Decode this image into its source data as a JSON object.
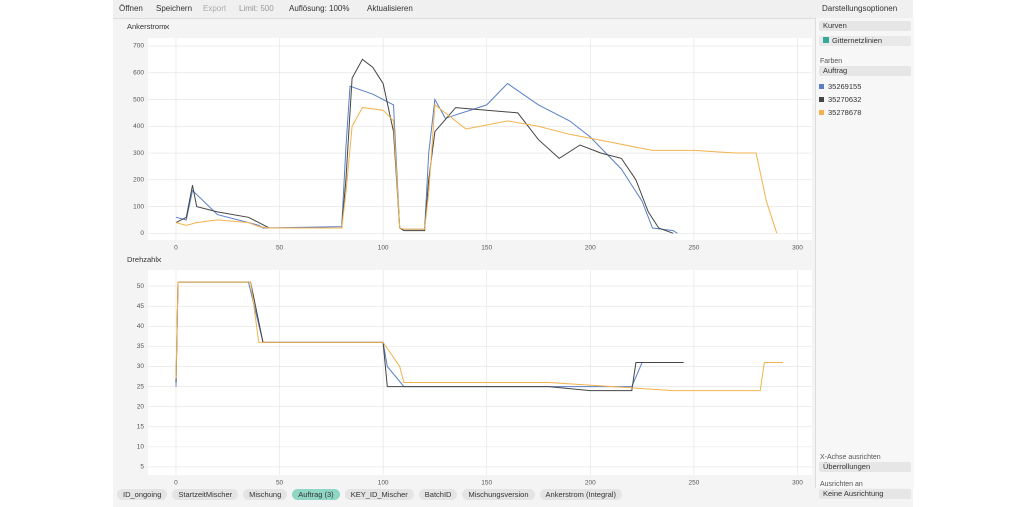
{
  "toolbar": {
    "open": "Öffnen",
    "save": "Speichern",
    "export": "Export",
    "limit": "Limit: 500",
    "resolution": "Auflösung: 100%",
    "refresh": "Aktualisieren",
    "options": "Darstellungsoptionen"
  },
  "panel": {
    "mode": "Kurven",
    "grid_option": "Gitternetzlinien",
    "colors_label": "Farben",
    "colors_by": "Auftrag",
    "align_x_label": "X-Achse ausrichten",
    "align_x": "Überrollungen",
    "align_to_label": "Ausrichten an",
    "align_to": "Keine Ausrichtung"
  },
  "chips": [
    "ID_ongoing",
    "StartzeitMischer",
    "Mischung",
    "Auftrag (3)",
    "KEY_ID_Mischer",
    "BatchID",
    "Mischungsversion",
    "Ankerstrom (Integral)"
  ],
  "chart_data": [
    {
      "type": "line",
      "title": "Ankerstrom",
      "xlim": [
        -13.5,
        307
      ],
      "ylim": [
        -25,
        730
      ],
      "xticks": [
        0,
        50,
        100,
        150,
        200,
        250,
        300
      ],
      "yticks": [
        0,
        100,
        200,
        300,
        400,
        500,
        600,
        700
      ],
      "grid": true,
      "series": [
        {
          "name": "35269155",
          "color": "#5b7fc4",
          "x": [
            0,
            5,
            8,
            20,
            35,
            40,
            42,
            80,
            82,
            84,
            95,
            100,
            105,
            108,
            110,
            120,
            122,
            125,
            130,
            150,
            160,
            175,
            190,
            200,
            215,
            225,
            230,
            240,
            242
          ],
          "values": [
            60,
            50,
            160,
            70,
            40,
            30,
            20,
            25,
            320,
            550,
            520,
            500,
            480,
            20,
            15,
            15,
            300,
            500,
            430,
            480,
            560,
            480,
            420,
            360,
            240,
            120,
            20,
            10,
            0
          ]
        },
        {
          "name": "35270632",
          "color": "#454545",
          "x": [
            0,
            5,
            8,
            10,
            20,
            35,
            40,
            45,
            80,
            82,
            85,
            90,
            95,
            100,
            105,
            108,
            110,
            120,
            122,
            125,
            135,
            150,
            165,
            175,
            185,
            195,
            205,
            215,
            222,
            228,
            233,
            240
          ],
          "values": [
            40,
            60,
            180,
            100,
            80,
            60,
            40,
            20,
            20,
            200,
            580,
            650,
            620,
            560,
            380,
            20,
            10,
            10,
            200,
            380,
            470,
            460,
            450,
            350,
            280,
            330,
            300,
            280,
            200,
            80,
            20,
            0
          ]
        },
        {
          "name": "35278678",
          "color": "#f2b34d",
          "x": [
            0,
            5,
            10,
            20,
            35,
            40,
            45,
            80,
            82,
            85,
            90,
            100,
            105,
            108,
            110,
            120,
            122,
            125,
            140,
            160,
            175,
            190,
            210,
            230,
            250,
            270,
            280,
            285,
            290
          ],
          "values": [
            40,
            30,
            40,
            50,
            40,
            25,
            20,
            20,
            150,
            400,
            470,
            460,
            420,
            20,
            15,
            15,
            150,
            480,
            390,
            420,
            400,
            370,
            340,
            310,
            310,
            300,
            300,
            120,
            0
          ]
        }
      ]
    },
    {
      "type": "line",
      "title": "Drehzahl",
      "xlim": [
        -13.5,
        307
      ],
      "ylim": [
        3,
        54
      ],
      "xticks": [
        0,
        50,
        100,
        150,
        200,
        250,
        300
      ],
      "yticks": [
        5,
        10,
        15,
        20,
        25,
        30,
        35,
        40,
        45,
        50
      ],
      "grid": true,
      "series": [
        {
          "color": "#5b7fc4",
          "x": [
            0,
            1,
            35,
            42,
            80,
            100,
            102,
            110,
            130,
            180,
            200,
            220,
            225,
            245
          ],
          "values": [
            25,
            51,
            51,
            36,
            36,
            36,
            30,
            25,
            25,
            25,
            25,
            25,
            31,
            31
          ]
        },
        {
          "color": "#454545",
          "x": [
            0,
            1,
            36,
            42,
            100,
            102,
            110,
            180,
            200,
            220,
            222,
            245
          ],
          "values": [
            26,
            51,
            51,
            36,
            36,
            25,
            25,
            25,
            24,
            24,
            31,
            31
          ]
        },
        {
          "color": "#f2b34d",
          "x": [
            0,
            1,
            36,
            40,
            100,
            108,
            110,
            180,
            240,
            260,
            282,
            284,
            293
          ],
          "values": [
            27,
            51,
            51,
            36,
            36,
            30,
            26,
            26,
            24,
            24,
            24,
            31,
            31
          ]
        }
      ]
    }
  ]
}
